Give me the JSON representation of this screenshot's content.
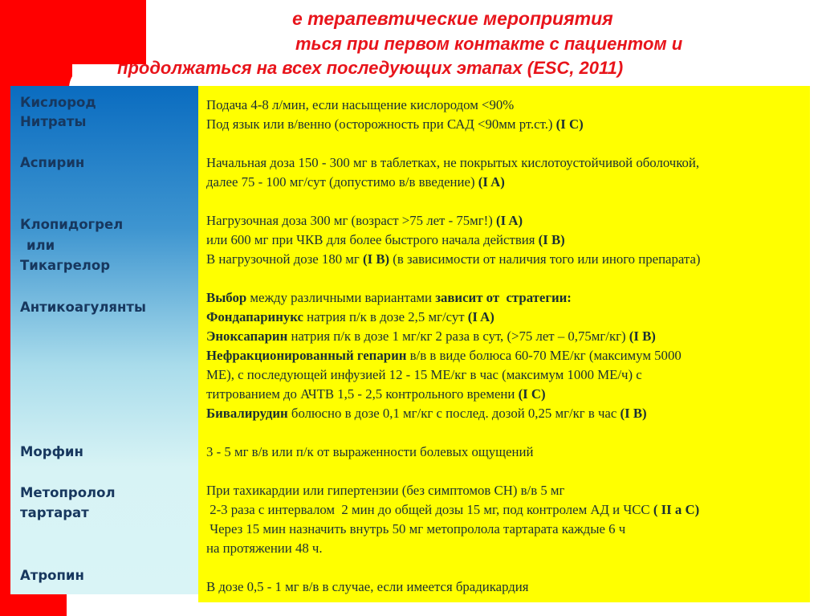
{
  "title": {
    "line1": "е терапевтические мероприятия",
    "line2": "ться при первом контакте с пациентом и",
    "line3": "продолжаться на всех последующих этапах  (ESC, 2011)"
  },
  "drugs": [
    "Кислород",
    "Нитраты",
    "Аспирин",
    "Клопидогрел",
    "или",
    "Тикагрелор",
    "Антикоагулянты",
    "Морфин",
    "Метопролол",
    "тартарат",
    "Атропин"
  ],
  "colors": {
    "accent_red": "#ff0000",
    "yellow": "#ffff00",
    "title_red": "#e8141b",
    "label_blue": "#17375e"
  },
  "lines": [
    [
      {
        "t": "Подача 4-8 л/мин, если насыщение кислородом <90%"
      }
    ],
    [
      {
        "t": "Под язык или в/венно (осторожность при САД <90мм рт.ст.) "
      },
      {
        "t": "(I C)",
        "b": true
      }
    ],
    [],
    [
      {
        "t": "Начальная доза 150 - 300 мг в таблетках, не покрытых кислотоустойчивой оболочкой,"
      }
    ],
    [
      {
        "t": "далее 75 - 100 мг/сут (допустимо в/в введение) "
      },
      {
        "t": "(I A)",
        "b": true
      }
    ],
    [],
    [
      {
        "t": "Нагрузочная доза 300 мг (возраст >75 лет - 75мг!) "
      },
      {
        "t": "(I A)",
        "b": true
      }
    ],
    [
      {
        "t": "или 600 мг при ЧКВ для более быстрого начала действия "
      },
      {
        "t": "(I B)",
        "b": true
      }
    ],
    [
      {
        "t": "В нагрузочной дозе 180 мг "
      },
      {
        "t": "(I B)",
        "b": true
      },
      {
        "t": " (в зависимости от наличия того или иного препарата)"
      }
    ],
    [],
    [
      {
        "t": "Выбор",
        "b": true
      },
      {
        "t": " между различными вариантами "
      },
      {
        "t": "зависит от  стратегии:",
        "b": true
      }
    ],
    [
      {
        "t": "Фондапаринукс",
        "b": true
      },
      {
        "t": " натрия п/к в дозе 2,5 мг/сут "
      },
      {
        "t": "(I A)",
        "b": true
      }
    ],
    [
      {
        "t": "Эноксапарин",
        "b": true
      },
      {
        "t": " натрия п/к в дозе 1 мг/кг 2 раза в сут, (>75 лет – 0,75мг/кг) "
      },
      {
        "t": "(I B)",
        "b": true
      }
    ],
    [
      {
        "t": "Нефракционированный гепарин",
        "b": true
      },
      {
        "t": " в/в в виде болюса 60-70 МЕ/кг (максимум 5000"
      }
    ],
    [
      {
        "t": "МЕ), с последующей инфузией 12 - 15 МЕ/кг в час (максимум 1000 МЕ/ч) с"
      }
    ],
    [
      {
        "t": "титрованием до АЧТВ 1,5 - 2,5 контрольного времени "
      },
      {
        "t": "(I C)",
        "b": true
      }
    ],
    [
      {
        "t": "Бивалирудин",
        "b": true
      },
      {
        "t": " болюсно в дозе 0,1 мг/кг с послед. дозой 0,25 мг/кг в час "
      },
      {
        "t": "(I B)",
        "b": true
      }
    ],
    [],
    [
      {
        "t": "3 - 5 мг в/в или п/к от выраженности болевых ощущений"
      }
    ],
    [],
    [
      {
        "t": "При тахикардии или гипертензии (без симптомов СН) в/в 5 мг"
      }
    ],
    [
      {
        "t": " 2-3 раза с интервалом  2 мин до общей дозы 15 мг, под контролем АД и ЧСС "
      },
      {
        "t": "( II a C)",
        "b": true
      }
    ],
    [
      {
        "t": " Через 15 мин назначить внутрь 50 мг метопролола тартарата каждые 6 ч"
      }
    ],
    [
      {
        "t": "на протяжении 48 ч."
      }
    ],
    [],
    [
      {
        "t": "В дозе 0,5 - 1 мг в/в в случае, если имеется брадикардия"
      }
    ]
  ]
}
